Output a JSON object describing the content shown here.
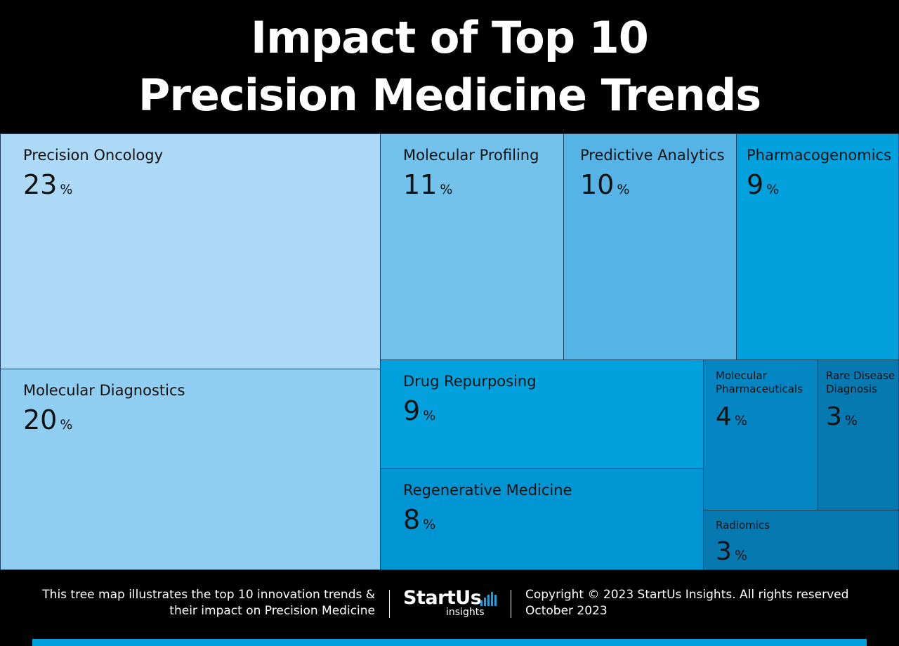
{
  "title": {
    "line1": "Impact of Top 10",
    "line2": "Precision Medicine Trends"
  },
  "chart_data": {
    "type": "treemap",
    "title": "Impact of Top 10 Precision Medicine Trends",
    "unit": "%",
    "items": [
      {
        "label": "Precision Oncology",
        "value": 23,
        "color": "#acd9f6"
      },
      {
        "label": "Molecular Diagnostics",
        "value": 20,
        "color": "#8fcdf1"
      },
      {
        "label": "Molecular Profiling",
        "value": 11,
        "color": "#73c2ec"
      },
      {
        "label": "Predictive Analytics",
        "value": 10,
        "color": "#55b4e5"
      },
      {
        "label": "Pharmacogenomics",
        "value": 9,
        "color": "#00a1dc"
      },
      {
        "label": "Drug Repurposing",
        "value": 9,
        "color": "#00a1dc"
      },
      {
        "label": "Regenerative Medicine",
        "value": 8,
        "color": "#0096d4"
      },
      {
        "label": "Molecular\nPharmaceuticals",
        "value": 4,
        "color": "#0386c2"
      },
      {
        "label": "Rare Disease\nDiagnosis",
        "value": 3,
        "color": "#0579b0"
      },
      {
        "label": "Radiomics",
        "value": 3,
        "color": "#0579b0"
      }
    ]
  },
  "footer": {
    "description_line1": "This tree map illustrates the top 10 innovation trends &",
    "description_line2": "their impact on Precision Medicine",
    "logo_main": "StartUs",
    "logo_sub": "insights",
    "copyright": "Copyright © 2023 StartUs Insights. All rights reserved",
    "date": "October 2023",
    "accent_color": "#009fde"
  }
}
